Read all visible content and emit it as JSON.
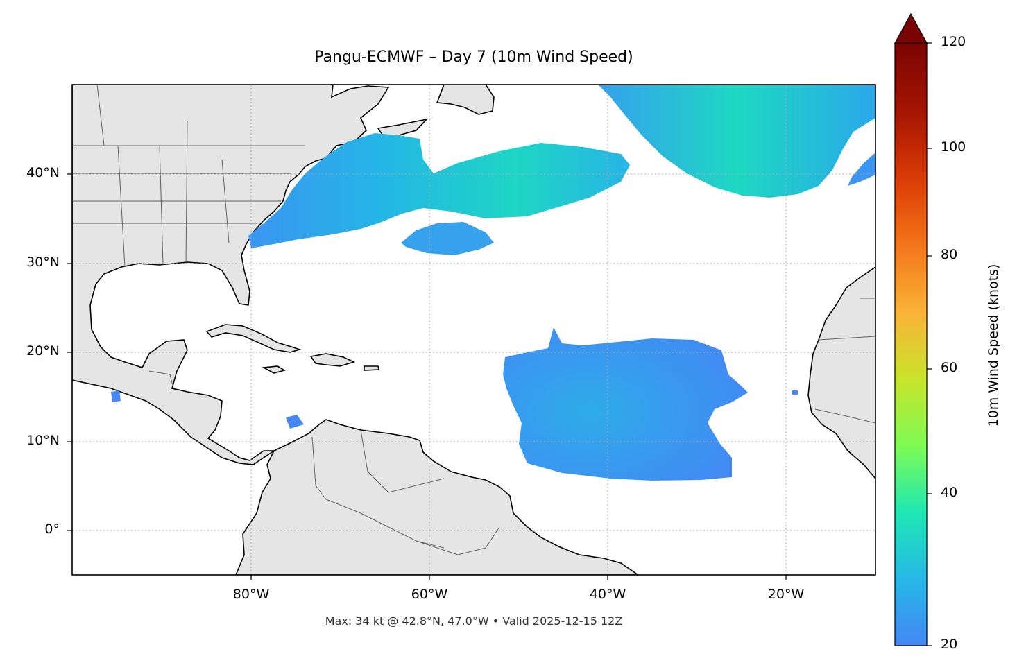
{
  "title": "Pangu-ECMWF – Day 7 (10m Wind Speed)",
  "footnote": "Max: 34 kt @ 42.8°N, 47.0°W • Valid 2025-12-15 12Z",
  "map": {
    "lon_range": [
      -100,
      -10
    ],
    "lat_range": [
      -5,
      50
    ],
    "gridlines": "dotted",
    "lat_ticks": [
      "40°N",
      "30°N",
      "20°N",
      "10°N",
      "0°"
    ],
    "lon_ticks": [
      "80°W",
      "60°W",
      "40°W",
      "20°W"
    ],
    "land_color": "#e5e5e5",
    "ocean_color": "#ffffff",
    "coastline_color": "#000000",
    "border_color": "#555555"
  },
  "colorbar": {
    "label": "10m Wind Speed (knots)",
    "ticks": [
      "20",
      "40",
      "60",
      "80",
      "100",
      "120"
    ],
    "range": [
      20,
      120
    ],
    "extend": "max",
    "colormap": "turbo",
    "colors": [
      "#4487f5",
      "#27b8e8",
      "#1ee7b4",
      "#7dfb55",
      "#c7e52b",
      "#f9b437",
      "#f5781b",
      "#dc3d06",
      "#a81602",
      "#7a0403"
    ]
  },
  "chart_data": {
    "type": "heatmap",
    "title": "Pangu-ECMWF – Day 7 (10m Wind Speed)",
    "variable": "10m Wind Speed",
    "units": "knots",
    "max": {
      "value": 34,
      "lat": 42.8,
      "lon": -47.0
    },
    "valid_time": "2025-12-15 12Z",
    "colorbar_range": [
      20,
      120
    ],
    "wind_regions": [
      {
        "region": "US East Coast to central North Atlantic",
        "lat_range": [
          31.5,
          44
        ],
        "lon_range": [
          -77,
          -46
        ],
        "peak_kt": 34
      },
      {
        "region": "Northeast Atlantic",
        "lat_range": [
          37,
          50
        ],
        "lon_range": [
          -40,
          -10
        ],
        "peak_kt": 32
      },
      {
        "region": "Bermuda area patch",
        "lat_range": [
          30.5,
          34.5
        ],
        "lon_range": [
          -61,
          -53
        ],
        "peak_kt": 24
      },
      {
        "region": "Tropical Atlantic trade winds",
        "lat_range": [
          5,
          22.5
        ],
        "lon_range": [
          -51.5,
          -23
        ],
        "peak_kt": 26
      }
    ]
  }
}
